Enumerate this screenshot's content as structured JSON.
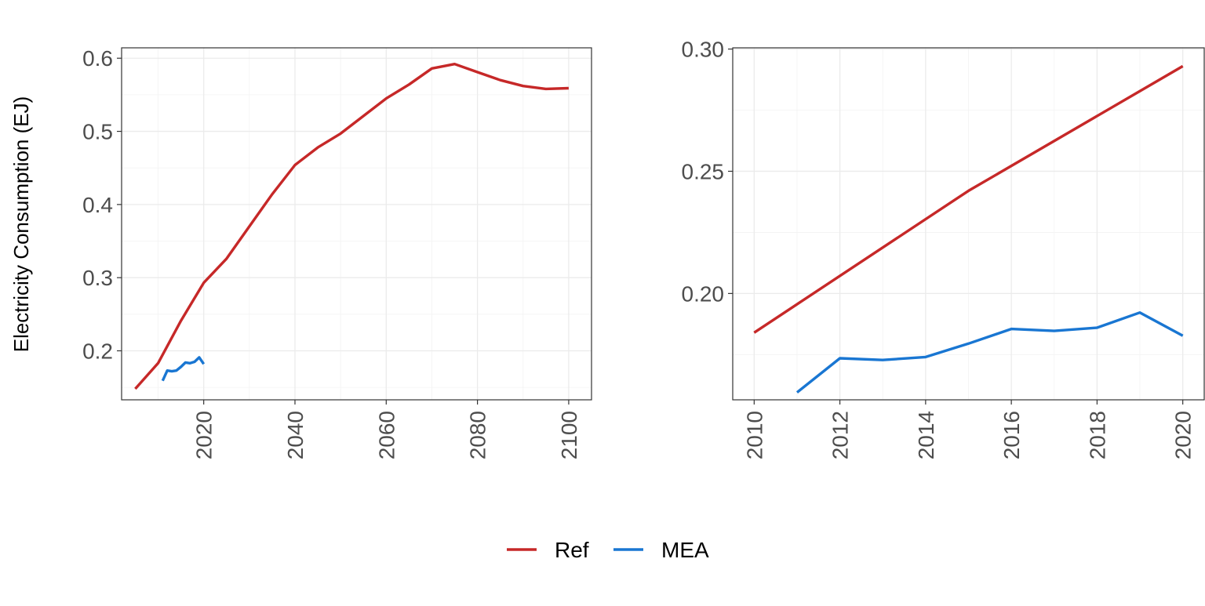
{
  "chart_data": [
    {
      "type": "line",
      "ylabel": "Electricity Consumption (EJ)",
      "xlim": [
        2002,
        2105
      ],
      "ylim": [
        0.133,
        0.6142
      ],
      "xticks": [
        2020,
        2040,
        2060,
        2080,
        2100
      ],
      "yticks": [
        0.2,
        0.3,
        0.4,
        0.5,
        0.6
      ],
      "grid": true,
      "series": [
        {
          "name": "Ref",
          "color": "#c62828",
          "x": [
            2005,
            2010,
            2015,
            2020,
            2025,
            2030,
            2035,
            2040,
            2045,
            2050,
            2055,
            2060,
            2065,
            2070,
            2075,
            2080,
            2085,
            2090,
            2095,
            2100
          ],
          "y": [
            0.148,
            0.183,
            0.241,
            0.293,
            0.326,
            0.37,
            0.414,
            0.454,
            0.478,
            0.497,
            0.521,
            0.545,
            0.564,
            0.586,
            0.592,
            0.581,
            0.57,
            0.562,
            0.558,
            0.559
          ]
        },
        {
          "name": "MEA",
          "color": "#1976d2",
          "x": [
            2011,
            2012,
            2013,
            2014,
            2015,
            2016,
            2017,
            2018,
            2019,
            2020
          ],
          "y": [
            0.159,
            0.173,
            0.172,
            0.173,
            0.178,
            0.184,
            0.183,
            0.185,
            0.191,
            0.182
          ]
        }
      ]
    },
    {
      "type": "line",
      "xlim": [
        2009.5,
        2020.5
      ],
      "ylim": [
        0.1565,
        0.3005
      ],
      "xticks": [
        2010,
        2012,
        2014,
        2016,
        2018,
        2020
      ],
      "yticks": [
        0.2,
        0.25,
        0.3
      ],
      "ytick_labels": [
        "0.20",
        "0.25",
        "0.30"
      ],
      "grid": true,
      "series": [
        {
          "name": "Ref",
          "color": "#c62828",
          "x": [
            2010,
            2015,
            2020
          ],
          "y": [
            0.184,
            0.242,
            0.293
          ]
        },
        {
          "name": "MEA",
          "color": "#1976d2",
          "x": [
            2011,
            2012,
            2013,
            2014,
            2015,
            2016,
            2017,
            2018,
            2019,
            2020
          ],
          "y": [
            0.1595,
            0.1735,
            0.1728,
            0.174,
            0.1795,
            0.1855,
            0.1847,
            0.186,
            0.1922,
            0.1827
          ]
        }
      ]
    }
  ],
  "legend": {
    "position": "bottom",
    "items": [
      {
        "label": "Ref",
        "color": "#c62828"
      },
      {
        "label": "MEA",
        "color": "#1976d2"
      }
    ]
  }
}
